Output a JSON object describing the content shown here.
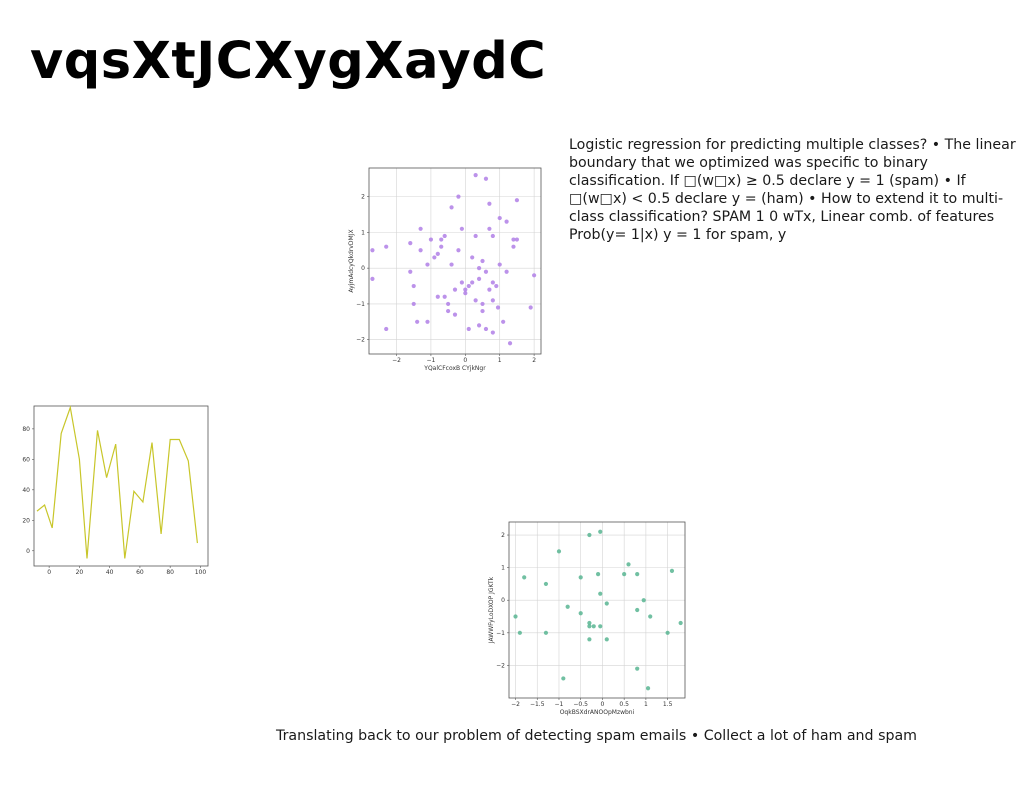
{
  "slide": {
    "title": "vqsXtJCXygXaydC",
    "body": "Logistic regression for predicting multiple classes? • The linear boundary that we optimized was specific to binary classification. If □(w□x) ≥ 0.5 declare y = 1 (spam) • If □(w□x) < 0.5 declare y = (ham) • How to extend it to multi-class classification? SPAM 1 0 wTx, Linear comb. of features Prob(y= 1|x) y = 1 for spam, y",
    "caption": "Translating back to our problem of detecting spam emails • Collect a lot of ham and spam"
  },
  "chart_data": [
    {
      "type": "scatter",
      "xlabel": "YQalCFcoxB CYjkNgr",
      "ylabel": "AyjmAdcyQkdrvDMJX",
      "xlim": [
        -2.8,
        2.2
      ],
      "ylim": [
        -2.4,
        2.8
      ],
      "xticks": [
        -2,
        -1,
        0,
        1,
        2
      ],
      "yticks": [
        -2,
        -1,
        0,
        1,
        2
      ],
      "grid": true,
      "color": "#b07fe6",
      "points": [
        [
          -2.7,
          0.5
        ],
        [
          -2.7,
          -0.3
        ],
        [
          -2.3,
          0.6
        ],
        [
          -2.3,
          -1.7
        ],
        [
          -1.6,
          0.7
        ],
        [
          -1.6,
          -0.1
        ],
        [
          -1.5,
          -0.5
        ],
        [
          -1.5,
          -1.0
        ],
        [
          -1.4,
          -1.5
        ],
        [
          -1.3,
          1.1
        ],
        [
          -1.3,
          0.5
        ],
        [
          -1.1,
          0.1
        ],
        [
          -1.1,
          -1.5
        ],
        [
          -1.0,
          0.8
        ],
        [
          -0.9,
          0.3
        ],
        [
          -0.8,
          -0.8
        ],
        [
          -0.7,
          0.6
        ],
        [
          -0.7,
          0.8
        ],
        [
          -0.6,
          0.9
        ],
        [
          -0.6,
          -0.8
        ],
        [
          -0.5,
          -1.0
        ],
        [
          -0.5,
          -1.2
        ],
        [
          -0.4,
          1.7
        ],
        [
          -0.4,
          0.1
        ],
        [
          -0.3,
          -1.3
        ],
        [
          -0.3,
          -0.6
        ],
        [
          -0.2,
          0.5
        ],
        [
          -0.2,
          2.0
        ],
        [
          -0.1,
          1.1
        ],
        [
          -0.1,
          -0.4
        ],
        [
          0.0,
          -0.6
        ],
        [
          0.0,
          -0.7
        ],
        [
          0.1,
          -1.7
        ],
        [
          0.1,
          -0.5
        ],
        [
          0.2,
          -0.4
        ],
        [
          0.3,
          2.6
        ],
        [
          0.3,
          0.9
        ],
        [
          0.3,
          -0.9
        ],
        [
          0.4,
          -1.6
        ],
        [
          0.4,
          -0.3
        ],
        [
          0.5,
          0.2
        ],
        [
          0.5,
          -1.0
        ],
        [
          0.5,
          -1.2
        ],
        [
          0.6,
          2.5
        ],
        [
          0.6,
          -0.1
        ],
        [
          0.6,
          -1.7
        ],
        [
          0.7,
          1.8
        ],
        [
          0.7,
          1.1
        ],
        [
          0.7,
          -0.6
        ],
        [
          0.8,
          0.9
        ],
        [
          0.8,
          -0.4
        ],
        [
          0.8,
          -0.9
        ],
        [
          0.8,
          -1.8
        ],
        [
          0.9,
          -0.5
        ],
        [
          1.0,
          1.4
        ],
        [
          1.0,
          0.1
        ],
        [
          1.1,
          -1.5
        ],
        [
          1.2,
          1.3
        ],
        [
          1.2,
          -0.1
        ],
        [
          1.3,
          -2.1
        ],
        [
          1.4,
          0.8
        ],
        [
          1.4,
          0.6
        ],
        [
          1.5,
          1.9
        ],
        [
          1.5,
          0.8
        ],
        [
          1.9,
          -1.1
        ],
        [
          2.0,
          -0.2
        ],
        [
          0.2,
          0.3
        ],
        [
          -0.8,
          0.4
        ],
        [
          0.4,
          0.0
        ],
        [
          0.95,
          -1.1
        ]
      ]
    },
    {
      "type": "line",
      "xlim": [
        -10,
        105
      ],
      "ylim": [
        -10,
        95
      ],
      "xticks": [
        0,
        20,
        40,
        60,
        80,
        100
      ],
      "yticks": [
        0,
        20,
        40,
        60,
        80
      ],
      "grid": false,
      "color": "#c8c62a",
      "x": [
        -8,
        -3,
        2,
        8,
        14,
        20,
        25,
        32,
        38,
        44,
        50,
        56,
        62,
        68,
        74,
        80,
        86,
        92,
        98
      ],
      "y": [
        26,
        30,
        15,
        77,
        94,
        60,
        -5,
        79,
        48,
        70,
        -5,
        39,
        32,
        71,
        11,
        73,
        73,
        59,
        5
      ]
    },
    {
      "type": "scatter",
      "xlabel": "OqkBSXdrANOOpMzwbni",
      "ylabel": "JAWWFyLoDXOP JGKTk",
      "xlim": [
        -2.15,
        1.9
      ],
      "ylim": [
        -3.0,
        2.4
      ],
      "xticks": [
        -2.0,
        -1.5,
        -1.0,
        -0.5,
        0.0,
        0.5,
        1.0,
        1.5
      ],
      "yticks": [
        -2,
        -1,
        0,
        1,
        2
      ],
      "grid": true,
      "color": "#58b592",
      "points": [
        [
          -2.0,
          -0.5
        ],
        [
          -1.9,
          -1.0
        ],
        [
          -1.8,
          0.7
        ],
        [
          -1.3,
          0.5
        ],
        [
          -1.3,
          -1.0
        ],
        [
          -1.0,
          1.5
        ],
        [
          -0.9,
          -2.4
        ],
        [
          -0.8,
          -0.2
        ],
        [
          -0.5,
          0.7
        ],
        [
          -0.5,
          -0.4
        ],
        [
          -0.3,
          2.0
        ],
        [
          -0.3,
          -0.8
        ],
        [
          -0.3,
          -1.2
        ],
        [
          -0.2,
          -0.8
        ],
        [
          -0.1,
          0.8
        ],
        [
          -0.05,
          2.1
        ],
        [
          -0.05,
          0.2
        ],
        [
          -0.05,
          -0.8
        ],
        [
          0.1,
          -0.1
        ],
        [
          0.1,
          -1.2
        ],
        [
          0.5,
          0.8
        ],
        [
          0.6,
          1.1
        ],
        [
          0.8,
          0.8
        ],
        [
          0.8,
          -0.3
        ],
        [
          0.8,
          -2.1
        ],
        [
          0.95,
          0.0
        ],
        [
          1.05,
          -2.7
        ],
        [
          1.1,
          -0.5
        ],
        [
          1.5,
          -1.0
        ],
        [
          1.6,
          0.9
        ],
        [
          1.8,
          -0.7
        ],
        [
          -0.3,
          -0.7
        ]
      ]
    }
  ]
}
